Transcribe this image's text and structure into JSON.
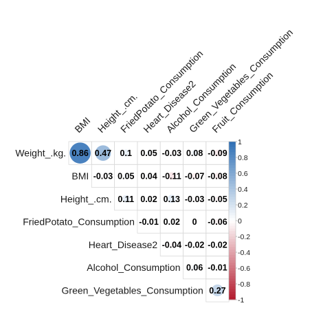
{
  "chart_data": {
    "type": "heatmap",
    "title": "",
    "row_labels": [
      "Weight_.kg.",
      "BMI",
      "Height_.cm.",
      "FriedPotato_Consumption",
      "Heart_Disease2",
      "Alcohol_Consumption",
      "Green_Vegetables_Consumption"
    ],
    "column_labels": [
      "BMI",
      "Height_.cm.",
      "FriedPotato_Consumption",
      "Heart_Disease2",
      "Alcohol_Consumption",
      "Green_Vegetables_Consumption",
      "Fruit_Consumption"
    ],
    "cells": [
      {
        "row": 0,
        "col": 0,
        "value": 0.86,
        "label": "0.86"
      },
      {
        "row": 0,
        "col": 1,
        "value": 0.47,
        "label": "0.47"
      },
      {
        "row": 0,
        "col": 2,
        "value": 0.1,
        "label": "0.1"
      },
      {
        "row": 0,
        "col": 3,
        "value": 0.05,
        "label": "0.05"
      },
      {
        "row": 0,
        "col": 4,
        "value": -0.03,
        "label": "-0.03"
      },
      {
        "row": 0,
        "col": 5,
        "value": 0.08,
        "label": "0.08"
      },
      {
        "row": 0,
        "col": 6,
        "value": -0.09,
        "label": "-0.09"
      },
      {
        "row": 1,
        "col": 1,
        "value": -0.03,
        "label": "-0.03"
      },
      {
        "row": 1,
        "col": 2,
        "value": 0.05,
        "label": "0.05"
      },
      {
        "row": 1,
        "col": 3,
        "value": 0.04,
        "label": "0.04"
      },
      {
        "row": 1,
        "col": 4,
        "value": -0.11,
        "label": "-0.11"
      },
      {
        "row": 1,
        "col": 5,
        "value": -0.07,
        "label": "-0.07"
      },
      {
        "row": 1,
        "col": 6,
        "value": -0.08,
        "label": "-0.08"
      },
      {
        "row": 2,
        "col": 2,
        "value": 0.11,
        "label": "0.11"
      },
      {
        "row": 2,
        "col": 3,
        "value": 0.02,
        "label": "0.02"
      },
      {
        "row": 2,
        "col": 4,
        "value": 0.13,
        "label": "0.13"
      },
      {
        "row": 2,
        "col": 5,
        "value": -0.03,
        "label": "-0.03"
      },
      {
        "row": 2,
        "col": 6,
        "value": -0.05,
        "label": "-0.05"
      },
      {
        "row": 3,
        "col": 3,
        "value": -0.01,
        "label": "-0.01"
      },
      {
        "row": 3,
        "col": 4,
        "value": 0.02,
        "label": "0.02"
      },
      {
        "row": 3,
        "col": 5,
        "value": 0,
        "label": "0"
      },
      {
        "row": 3,
        "col": 6,
        "value": -0.06,
        "label": "-0.06"
      },
      {
        "row": 4,
        "col": 4,
        "value": -0.04,
        "label": "-0.04"
      },
      {
        "row": 4,
        "col": 5,
        "value": -0.02,
        "label": "-0.02"
      },
      {
        "row": 4,
        "col": 6,
        "value": -0.02,
        "label": "-0.02"
      },
      {
        "row": 5,
        "col": 5,
        "value": 0.06,
        "label": "0.06"
      },
      {
        "row": 5,
        "col": 6,
        "value": -0.01,
        "label": "-0.01"
      },
      {
        "row": 6,
        "col": 6,
        "value": 0.27,
        "label": "0.27"
      }
    ],
    "scale": {
      "range": [
        -1,
        1
      ],
      "ticks": [
        "1",
        "0.8",
        "0.6",
        "0.4",
        "0.2",
        "0",
        "-0.2",
        "-0.4",
        "-0.6",
        "-0.8",
        "-1"
      ],
      "positive_color": "#2c6eb4",
      "negative_color": "#b2182b",
      "neutral_color": "#ffffff"
    },
    "cell_style": "circle with coefficient label",
    "legend": "right",
    "grid": true
  }
}
